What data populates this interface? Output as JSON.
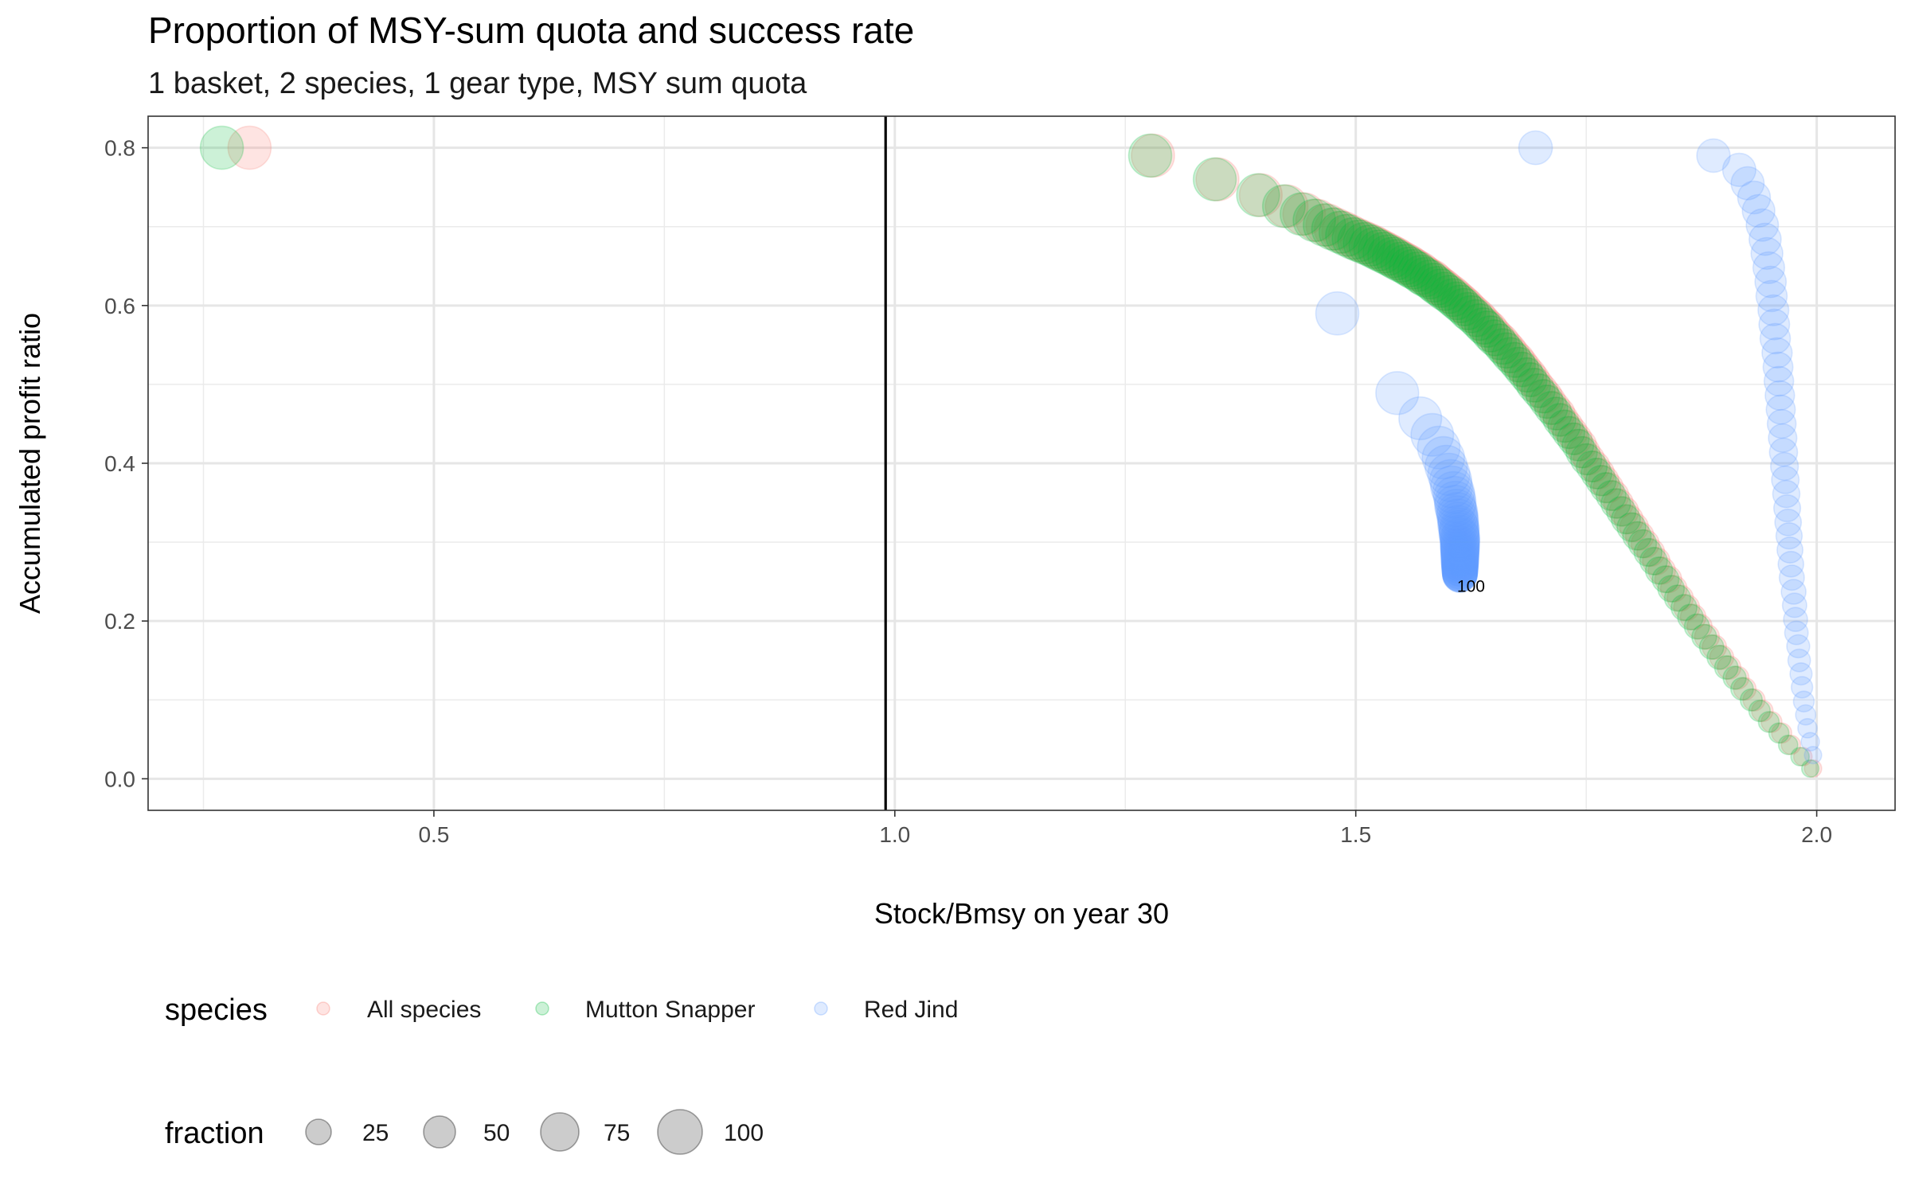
{
  "chart_data": {
    "type": "scatter",
    "title": "Proportion of MSY-sum quota and success rate",
    "subtitle": "1 basket, 2 species, 1 gear type, MSY sum quota",
    "xlabel": "Stock/Bmsy on year 30",
    "ylabel": "Accumulated profit ratio",
    "xlim": [
      0.19,
      2.085
    ],
    "ylim": [
      -0.04,
      0.84
    ],
    "x_ticks": [
      0.5,
      1.0,
      1.5,
      2.0
    ],
    "x_tick_labels": [
      "0.5",
      "1.0",
      "1.5",
      "2.0"
    ],
    "y_ticks": [
      0.0,
      0.2,
      0.4,
      0.6,
      0.8
    ],
    "y_tick_labels": [
      "0.0",
      "0.2",
      "0.4",
      "0.6",
      "0.8"
    ],
    "grid": true,
    "vline_x": 0.99,
    "legend_position": "bottom",
    "colors": {
      "All species": "#F8766D",
      "Mutton Snapper": "#00BA38",
      "Red Jind": "#619CFF"
    },
    "size_legend": {
      "title": "fraction",
      "breaks": [
        25,
        50,
        75,
        100
      ],
      "labels": [
        "25",
        "50",
        "75",
        "100"
      ]
    },
    "color_legend": {
      "title": "species",
      "labels": [
        "All species",
        "Mutton Snapper",
        "Red Jind"
      ]
    },
    "series": [
      {
        "name": "All species",
        "fraction": [
          1,
          2,
          3,
          4,
          5,
          6,
          7,
          8,
          9,
          10,
          11,
          12,
          13,
          14,
          15,
          16,
          17,
          18,
          19,
          20,
          21,
          22,
          23,
          24,
          25,
          26,
          27,
          28,
          29,
          30,
          31,
          32,
          33,
          34,
          35,
          36,
          37,
          38,
          39,
          40,
          41,
          42,
          43,
          44,
          45,
          46,
          47,
          48,
          49,
          50,
          51,
          52,
          53,
          54,
          55,
          56,
          57,
          58,
          59,
          60,
          61,
          62,
          63,
          64,
          65,
          66,
          67,
          68,
          69,
          70,
          71,
          72,
          73,
          74,
          75,
          76,
          77,
          78,
          79,
          80,
          81,
          82,
          83,
          84,
          85,
          86,
          87,
          88,
          89,
          90,
          91,
          92,
          93,
          94,
          95,
          96,
          97,
          98,
          99,
          100
        ],
        "x": [
          1.996,
          1.985,
          1.972,
          1.962,
          1.951,
          1.941,
          1.932,
          1.922,
          1.914,
          1.905,
          1.897,
          1.889,
          1.881,
          1.873,
          1.866,
          1.859,
          1.852,
          1.845,
          1.839,
          1.832,
          1.826,
          1.82,
          1.814,
          1.808,
          1.802,
          1.796,
          1.791,
          1.785,
          1.78,
          1.774,
          1.769,
          1.764,
          1.759,
          1.753,
          1.748,
          1.744,
          1.739,
          1.734,
          1.729,
          1.724,
          1.72,
          1.715,
          1.71,
          1.706,
          1.701,
          1.696,
          1.692,
          1.688,
          1.683,
          1.679,
          1.675,
          1.67,
          1.666,
          1.662,
          1.658,
          1.653,
          1.649,
          1.645,
          1.641,
          1.637,
          1.633,
          1.628,
          1.624,
          1.62,
          1.616,
          1.612,
          1.608,
          1.604,
          1.599,
          1.595,
          1.591,
          1.587,
          1.583,
          1.578,
          1.574,
          1.57,
          1.565,
          1.561,
          1.557,
          1.552,
          1.547,
          1.543,
          1.538,
          1.533,
          1.528,
          1.523,
          1.518,
          1.512,
          1.506,
          1.5,
          1.493,
          1.486,
          1.478,
          1.469,
          1.458,
          1.444,
          1.425,
          1.397,
          1.35,
          1.28
        ],
        "y": [
          0.013,
          0.028,
          0.043,
          0.058,
          0.072,
          0.086,
          0.1,
          0.114,
          0.128,
          0.141,
          0.154,
          0.167,
          0.18,
          0.193,
          0.205,
          0.217,
          0.229,
          0.241,
          0.253,
          0.264,
          0.276,
          0.287,
          0.298,
          0.308,
          0.319,
          0.329,
          0.339,
          0.349,
          0.359,
          0.369,
          0.378,
          0.387,
          0.396,
          0.405,
          0.414,
          0.423,
          0.431,
          0.439,
          0.447,
          0.455,
          0.463,
          0.47,
          0.478,
          0.485,
          0.492,
          0.499,
          0.506,
          0.512,
          0.519,
          0.525,
          0.531,
          0.537,
          0.543,
          0.548,
          0.554,
          0.559,
          0.564,
          0.57,
          0.574,
          0.579,
          0.584,
          0.589,
          0.593,
          0.598,
          0.602,
          0.606,
          0.61,
          0.614,
          0.618,
          0.622,
          0.625,
          0.629,
          0.633,
          0.636,
          0.639,
          0.643,
          0.646,
          0.649,
          0.652,
          0.655,
          0.658,
          0.661,
          0.664,
          0.667,
          0.67,
          0.673,
          0.676,
          0.679,
          0.682,
          0.685,
          0.689,
          0.693,
          0.697,
          0.702,
          0.708,
          0.716,
          0.726,
          0.74,
          0.76,
          0.79
        ]
      },
      {
        "name": "Mutton Snapper",
        "fraction": [
          1,
          2,
          3,
          4,
          5,
          6,
          7,
          8,
          9,
          10,
          11,
          12,
          13,
          14,
          15,
          16,
          17,
          18,
          19,
          20,
          21,
          22,
          23,
          24,
          25,
          26,
          27,
          28,
          29,
          30,
          31,
          32,
          33,
          34,
          35,
          36,
          37,
          38,
          39,
          40,
          41,
          42,
          43,
          44,
          45,
          46,
          47,
          48,
          49,
          50,
          51,
          52,
          53,
          54,
          55,
          56,
          57,
          58,
          59,
          60,
          61,
          62,
          63,
          64,
          65,
          66,
          67,
          68,
          69,
          70,
          71,
          72,
          73,
          74,
          75,
          76,
          77,
          78,
          79,
          80,
          81,
          82,
          83,
          84,
          85,
          86,
          87,
          88,
          89,
          90,
          91,
          92,
          93,
          94,
          95,
          96,
          97,
          98,
          99,
          100
        ],
        "x": [
          1.993,
          1.982,
          1.969,
          1.959,
          1.948,
          1.938,
          1.929,
          1.919,
          1.911,
          1.902,
          1.894,
          1.886,
          1.878,
          1.87,
          1.863,
          1.856,
          1.849,
          1.842,
          1.836,
          1.829,
          1.823,
          1.817,
          1.811,
          1.805,
          1.799,
          1.793,
          1.788,
          1.782,
          1.777,
          1.771,
          1.766,
          1.761,
          1.756,
          1.75,
          1.745,
          1.741,
          1.736,
          1.731,
          1.726,
          1.721,
          1.717,
          1.712,
          1.707,
          1.703,
          1.698,
          1.693,
          1.689,
          1.685,
          1.68,
          1.676,
          1.672,
          1.667,
          1.663,
          1.659,
          1.655,
          1.65,
          1.646,
          1.642,
          1.638,
          1.634,
          1.63,
          1.625,
          1.621,
          1.617,
          1.613,
          1.609,
          1.605,
          1.601,
          1.596,
          1.592,
          1.588,
          1.584,
          1.58,
          1.575,
          1.571,
          1.567,
          1.562,
          1.558,
          1.554,
          1.549,
          1.544,
          1.54,
          1.535,
          1.53,
          1.525,
          1.52,
          1.515,
          1.509,
          1.503,
          1.497,
          1.49,
          1.483,
          1.475,
          1.466,
          1.455,
          1.441,
          1.422,
          1.394,
          1.347,
          1.277
        ],
        "y": [
          0.013,
          0.028,
          0.043,
          0.058,
          0.072,
          0.086,
          0.1,
          0.114,
          0.128,
          0.141,
          0.154,
          0.167,
          0.18,
          0.193,
          0.205,
          0.217,
          0.229,
          0.241,
          0.253,
          0.264,
          0.276,
          0.287,
          0.298,
          0.308,
          0.319,
          0.329,
          0.339,
          0.349,
          0.359,
          0.369,
          0.378,
          0.387,
          0.396,
          0.405,
          0.414,
          0.423,
          0.431,
          0.439,
          0.447,
          0.455,
          0.463,
          0.47,
          0.478,
          0.485,
          0.492,
          0.499,
          0.506,
          0.512,
          0.519,
          0.525,
          0.531,
          0.537,
          0.543,
          0.548,
          0.554,
          0.559,
          0.564,
          0.57,
          0.574,
          0.579,
          0.584,
          0.589,
          0.593,
          0.598,
          0.602,
          0.606,
          0.61,
          0.614,
          0.618,
          0.622,
          0.625,
          0.629,
          0.633,
          0.636,
          0.639,
          0.643,
          0.646,
          0.649,
          0.652,
          0.655,
          0.658,
          0.661,
          0.664,
          0.667,
          0.67,
          0.673,
          0.676,
          0.679,
          0.682,
          0.685,
          0.689,
          0.693,
          0.697,
          0.702,
          0.708,
          0.716,
          0.726,
          0.74,
          0.76,
          0.79
        ]
      },
      {
        "name": "Red Jind",
        "fraction": [
          1,
          2,
          3,
          4,
          5,
          6,
          7,
          8,
          9,
          10,
          11,
          12,
          13,
          14,
          15,
          16,
          17,
          18,
          19,
          20,
          21,
          22,
          23,
          24,
          25,
          26,
          27,
          28,
          29,
          30,
          31,
          32,
          33,
          34,
          35,
          36,
          37,
          38,
          39,
          40,
          41,
          42,
          43,
          44,
          45,
          46,
          47,
          48,
          49,
          50,
          51,
          52,
          53,
          54,
          55,
          56,
          57,
          58,
          59,
          60,
          61,
          62,
          63,
          64,
          65,
          66,
          67,
          68,
          69,
          70,
          71,
          72,
          73,
          74,
          75,
          76,
          77,
          78,
          79,
          80,
          81,
          82,
          83,
          84,
          85,
          86,
          87,
          88,
          89,
          90,
          91,
          92,
          93,
          94,
          95,
          96,
          97,
          98,
          99,
          100
        ],
        "x": [
          1.996,
          1.993,
          1.99,
          1.988,
          1.986,
          1.984,
          1.983,
          1.981,
          1.98,
          1.978,
          1.977,
          1.976,
          1.975,
          1.973,
          1.972,
          1.971,
          1.97,
          1.969,
          1.968,
          1.967,
          1.966,
          1.965,
          1.964,
          1.963,
          1.962,
          1.961,
          1.96,
          1.959,
          1.958,
          1.957,
          1.955,
          1.954,
          1.953,
          1.951,
          1.95,
          1.948,
          1.946,
          1.944,
          1.941,
          1.937,
          1.932,
          1.925,
          1.916,
          1.888,
          1.695,
          1.613,
          1.613,
          1.613,
          1.613,
          1.613,
          1.613,
          1.613,
          1.613,
          1.613,
          1.613,
          1.613,
          1.613,
          1.613,
          1.613,
          1.613,
          1.613,
          1.613,
          1.613,
          1.613,
          1.613,
          1.613,
          1.613,
          1.613,
          1.613,
          1.613,
          1.613,
          1.613,
          1.613,
          1.613,
          1.613,
          1.613,
          1.612,
          1.612,
          1.612,
          1.612,
          1.611,
          1.611,
          1.611,
          1.61,
          1.61,
          1.609,
          1.608,
          1.608,
          1.607,
          1.606,
          1.604,
          1.603,
          1.601,
          1.598,
          1.595,
          1.59,
          1.583,
          1.57,
          1.545,
          1.48
        ],
        "y": [
          0.03,
          0.047,
          0.064,
          0.081,
          0.098,
          0.116,
          0.133,
          0.15,
          0.168,
          0.185,
          0.202,
          0.22,
          0.237,
          0.255,
          0.272,
          0.29,
          0.308,
          0.325,
          0.343,
          0.361,
          0.379,
          0.396,
          0.414,
          0.432,
          0.45,
          0.468,
          0.486,
          0.504,
          0.522,
          0.54,
          0.558,
          0.576,
          0.594,
          0.612,
          0.63,
          0.648,
          0.666,
          0.684,
          0.702,
          0.72,
          0.737,
          0.755,
          0.772,
          0.79,
          0.8,
          0.258,
          0.258,
          0.259,
          0.259,
          0.26,
          0.261,
          0.262,
          0.263,
          0.264,
          0.266,
          0.267,
          0.268,
          0.27,
          0.271,
          0.273,
          0.274,
          0.276,
          0.278,
          0.28,
          0.282,
          0.284,
          0.286,
          0.288,
          0.29,
          0.292,
          0.294,
          0.296,
          0.299,
          0.301,
          0.304,
          0.306,
          0.309,
          0.312,
          0.315,
          0.318,
          0.321,
          0.325,
          0.329,
          0.333,
          0.337,
          0.341,
          0.346,
          0.351,
          0.357,
          0.363,
          0.37,
          0.378,
          0.386,
          0.396,
          0.407,
          0.42,
          0.436,
          0.457,
          0.489,
          0.59
        ]
      }
    ],
    "extra_points": [
      {
        "species": "All species",
        "x": 0.3,
        "y": 0.8,
        "fraction": 100
      },
      {
        "species": "Mutton Snapper",
        "x": 0.27,
        "y": 0.8,
        "fraction": 100
      }
    ],
    "annotations": [
      {
        "text": "100",
        "x": 1.625,
        "y": 0.245,
        "fraction": 100,
        "species": "Red Jind"
      }
    ]
  }
}
